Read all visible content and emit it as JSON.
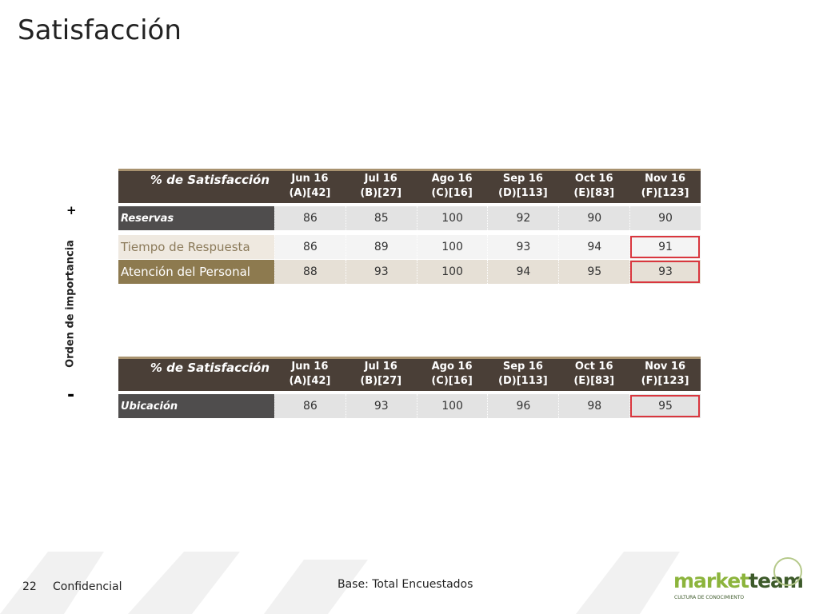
{
  "header": {
    "title": "Satisfacción"
  },
  "side_axis": {
    "label": "Orden de importancia",
    "top": "+",
    "bottom": "-"
  },
  "tables": [
    {
      "corner": "% de Satisfacción",
      "columns": [
        {
          "month": "Jun 16",
          "base": "(A)[42]"
        },
        {
          "month": "Jul 16",
          "base": "(B)[27]"
        },
        {
          "month": "Ago 16",
          "base": "(C)[16]"
        },
        {
          "month": "Sep 16",
          "base": "(D)[113]"
        },
        {
          "month": "Oct 16",
          "base": "(E)[83]"
        },
        {
          "month": "Nov 16",
          "base": "(F)[123]"
        }
      ],
      "rows": [
        {
          "label": "Reservas",
          "values": [
            86,
            85,
            100,
            92,
            90,
            90
          ]
        },
        {
          "label": "Tiempo de Respuesta",
          "values": [
            86,
            89,
            100,
            93,
            94,
            91
          ]
        },
        {
          "label": "Atención del Personal",
          "values": [
            88,
            93,
            100,
            94,
            95,
            93
          ]
        }
      ]
    },
    {
      "corner": "% de Satisfacción",
      "columns": [
        {
          "month": "Jun 16",
          "base": "(A)[42]"
        },
        {
          "month": "Jul 16",
          "base": "(B)[27]"
        },
        {
          "month": "Ago 16",
          "base": "(C)[16]"
        },
        {
          "month": "Sep 16",
          "base": "(D)[113]"
        },
        {
          "month": "Oct 16",
          "base": "(E)[83]"
        },
        {
          "month": "Nov 16",
          "base": "(F)[123]"
        }
      ],
      "rows": [
        {
          "label": "Ubicación",
          "values": [
            86,
            93,
            100,
            96,
            98,
            95
          ]
        }
      ]
    }
  ],
  "footer": {
    "page": "22",
    "confidential": "Confidencial",
    "base": "Base: Total Encuestados",
    "logo_a": "market",
    "logo_b": "team",
    "logo_tagline": "CULTURA DE CONOCIMIENTO"
  }
}
